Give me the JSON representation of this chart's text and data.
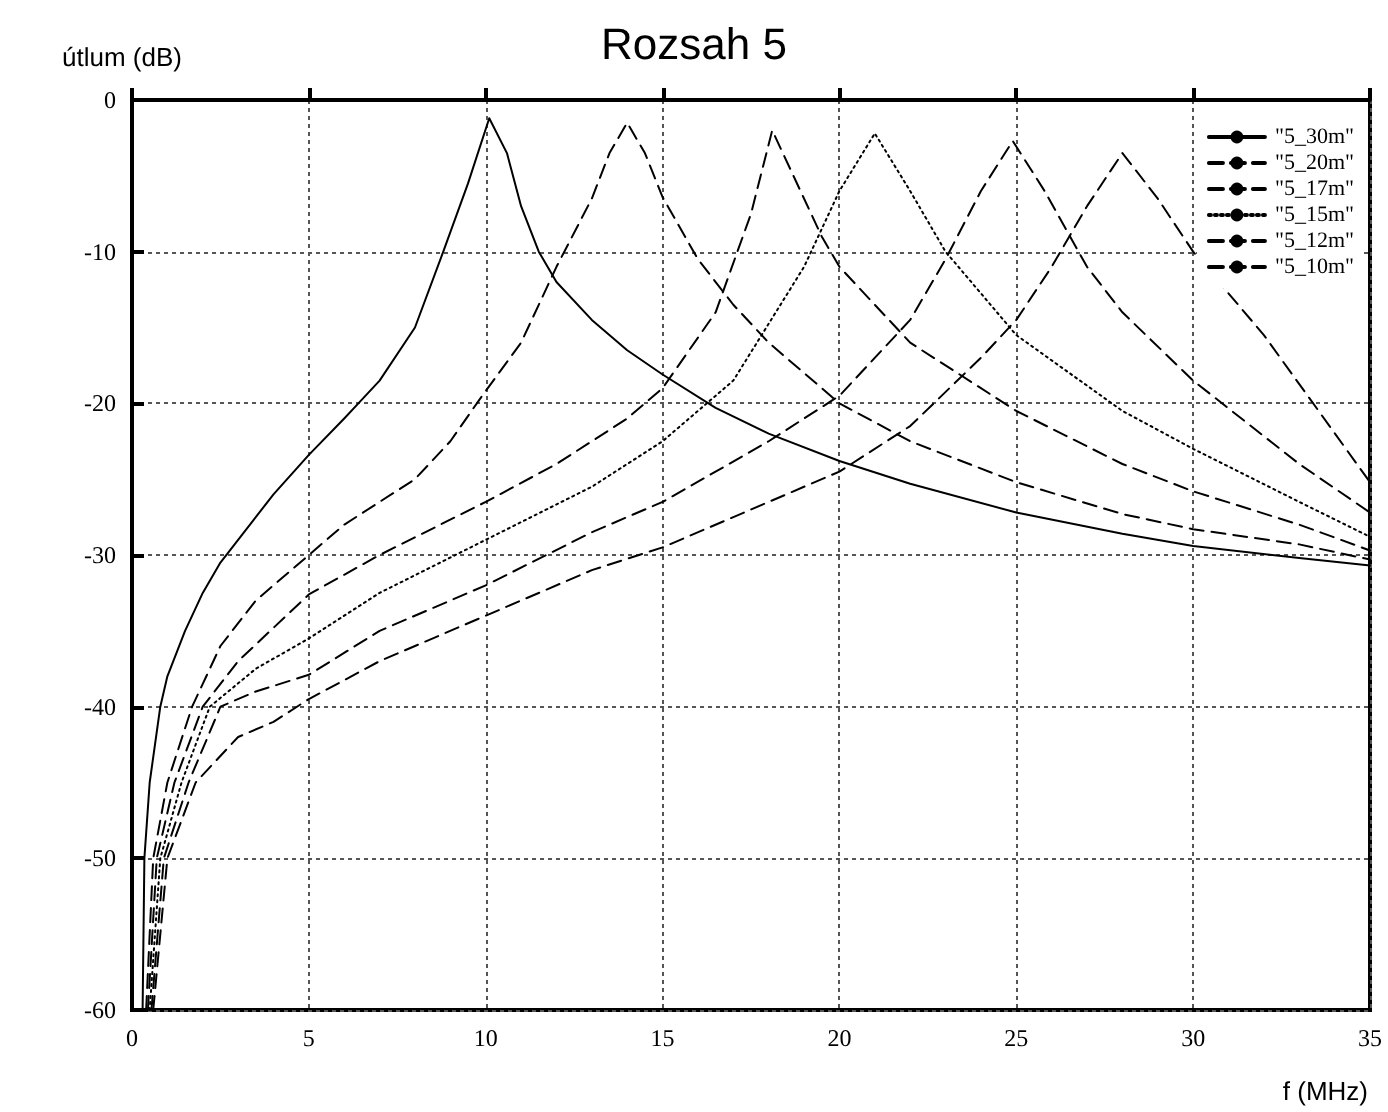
{
  "chart_data": {
    "type": "line",
    "title": "Rozsah 5",
    "xlabel": "f (MHz)",
    "ylabel": "útlum (dB)",
    "xlim": [
      0,
      35
    ],
    "ylim": [
      -60,
      0
    ],
    "xticks": [
      0,
      5,
      10,
      15,
      20,
      25,
      30,
      35
    ],
    "yticks": [
      -60,
      -50,
      -40,
      -30,
      -20,
      -10,
      0
    ],
    "grid": true,
    "legend": "top right",
    "marker": "none",
    "series": [
      {
        "name": "\"5_30m\"",
        "color": "#000000",
        "line_style": "solid",
        "x": [
          0.3,
          0.35,
          0.5,
          0.8,
          1,
          1.5,
          2,
          2.5,
          3,
          4,
          5,
          6,
          6.4,
          7,
          8,
          8.8,
          9.5,
          10.1,
          10.6,
          11,
          11.5,
          12,
          13,
          14,
          15,
          16.5,
          18,
          20,
          22,
          25,
          28,
          30,
          33,
          35
        ],
        "values": [
          -60,
          -50,
          -45,
          -40,
          -38,
          -35,
          -32.5,
          -30.5,
          -29,
          -26,
          -23.4,
          -21,
          -20,
          -18.5,
          -15,
          -10,
          -5.5,
          -1.2,
          -3.5,
          -7,
          -10,
          -12,
          -14.5,
          -16.5,
          -18.1,
          -20.3,
          -22,
          -23.8,
          -25.3,
          -27.2,
          -28.6,
          -29.4,
          -30.2,
          -30.7
        ]
      },
      {
        "name": "\"5_20m\"",
        "color": "#000000",
        "line_style": "dashed",
        "x": [
          0.4,
          0.6,
          1,
          1.7,
          2.5,
          3.5,
          5,
          6,
          7,
          8,
          9,
          9.9,
          11,
          12,
          13,
          13.5,
          14,
          14.5,
          15,
          16,
          17,
          18,
          20,
          22,
          25,
          28,
          30,
          33,
          35
        ],
        "values": [
          -60,
          -50,
          -45,
          -40,
          -36,
          -33,
          -30,
          -28,
          -26.5,
          -25,
          -22.5,
          -19.5,
          -16,
          -11,
          -6.5,
          -3.5,
          -1.5,
          -3.5,
          -6.4,
          -10.5,
          -13.5,
          -16,
          -20,
          -22.5,
          -25.2,
          -27.3,
          -28.3,
          -29.3,
          -30.3
        ]
      },
      {
        "name": "\"5_17m\"",
        "color": "#000000",
        "line_style": "dashed",
        "x": [
          0.45,
          0.7,
          1.2,
          2,
          3,
          5,
          7,
          10,
          12,
          14,
          15,
          16.5,
          17.5,
          18.1,
          18.7,
          19.5,
          20,
          22,
          25,
          28,
          30,
          33,
          35
        ],
        "values": [
          -60,
          -50,
          -45,
          -40,
          -37,
          -32.6,
          -30,
          -26.5,
          -24,
          -21,
          -19,
          -14,
          -7.5,
          -2,
          -5,
          -9,
          -11,
          -16,
          -20.5,
          -24,
          -25.8,
          -28,
          -29.7
        ]
      },
      {
        "name": "\"5_15m\"",
        "color": "#000000",
        "line_style": "dotted",
        "x": [
          0.5,
          0.8,
          1.4,
          2.2,
          3.5,
          5,
          7,
          10,
          13,
          15,
          17,
          19,
          20,
          21,
          22,
          23,
          25,
          28,
          30,
          33,
          35
        ],
        "values": [
          -60,
          -50,
          -45,
          -40,
          -37.5,
          -35.5,
          -32.5,
          -29,
          -25.5,
          -22.5,
          -18.5,
          -11,
          -6,
          -2.2,
          -6,
          -10,
          -15.5,
          -20.5,
          -23,
          -26.5,
          -28.8
        ]
      },
      {
        "name": "\"5_12m\"",
        "color": "#000000",
        "line_style": "dashed",
        "x": [
          0.55,
          0.9,
          1.6,
          2.5,
          3.5,
          5,
          7,
          10,
          13,
          15,
          18,
          20,
          22,
          23,
          24,
          24.9,
          25.8,
          27,
          28,
          30,
          33,
          35
        ],
        "values": [
          -60,
          -50,
          -45,
          -40,
          -39,
          -37.9,
          -35,
          -32,
          -28.5,
          -26.5,
          -22.5,
          -19.5,
          -14.5,
          -10.5,
          -6,
          -2.7,
          -6,
          -11,
          -14,
          -18.5,
          -24,
          -27.2
        ]
      },
      {
        "name": "\"5_10m\"",
        "color": "#000000",
        "line_style": "dashed",
        "x": [
          0.6,
          1,
          1.8,
          3,
          4,
          5,
          7,
          10,
          13,
          15,
          18,
          20,
          22,
          24,
          25,
          26,
          27,
          28,
          29,
          30,
          32,
          35
        ],
        "values": [
          -60,
          -50,
          -45,
          -42,
          -41,
          -39.5,
          -37,
          -34,
          -31,
          -29.5,
          -26.5,
          -24.5,
          -21.5,
          -17,
          -14.5,
          -11,
          -7,
          -3.5,
          -6.5,
          -10,
          -15.5,
          -25.2
        ]
      }
    ]
  }
}
